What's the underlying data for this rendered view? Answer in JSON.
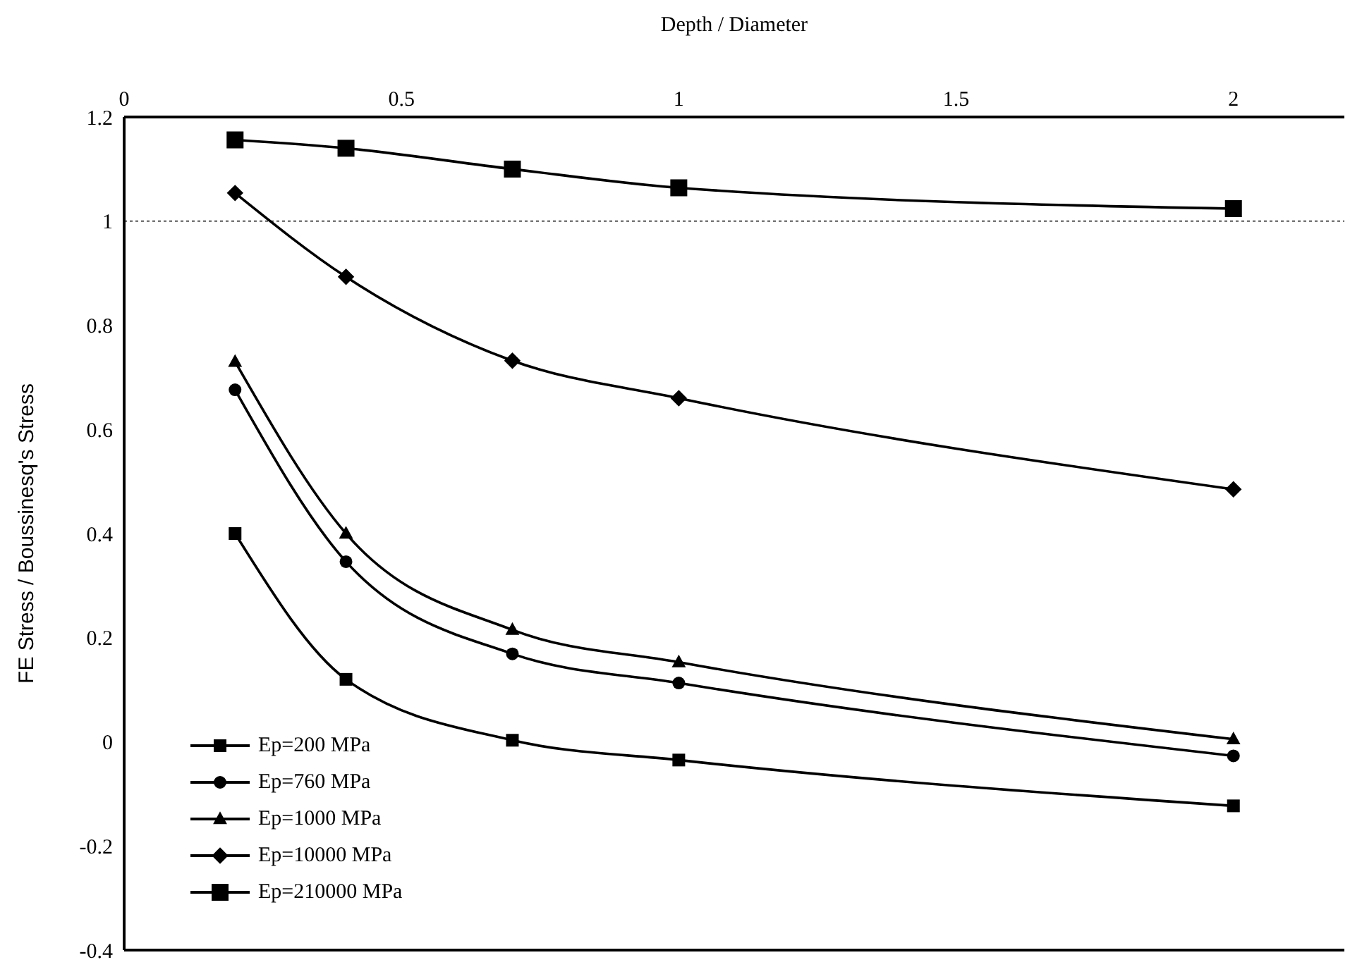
{
  "chart_data": {
    "type": "line",
    "xlabel": "Depth / Diameter",
    "ylabel": "FE Stress / Boussinesq's  Stress",
    "xlim": [
      0,
      2.2
    ],
    "xticks": [
      0,
      0.5,
      1,
      1.5,
      2
    ],
    "ylim": [
      -0.4,
      1.2
    ],
    "yticks": [
      -0.4,
      -0.2,
      0,
      0.2,
      0.4,
      0.6,
      0.8,
      1,
      1.2
    ],
    "x": [
      0.2,
      0.4,
      0.7,
      1,
      2
    ],
    "grid": false,
    "legend": "bottom left",
    "ref_lines": [
      {
        "axis": "y",
        "value": 1,
        "line_style": "dotted",
        "color": "#555555"
      }
    ],
    "series": [
      {
        "name": "Ep=200 MPa",
        "color": "#000000",
        "marker": "square",
        "values": [
          0.4,
          0.12,
          0.003,
          -0.035,
          -0.123
        ]
      },
      {
        "name": "Ep=760 MPa",
        "color": "#000000",
        "marker": "circle",
        "values": [
          0.676,
          0.346,
          0.169,
          0.113,
          -0.027
        ]
      },
      {
        "name": "Ep=1000 MPa",
        "color": "#000000",
        "marker": "triangle",
        "values": [
          0.73,
          0.4,
          0.215,
          0.153,
          0.005
        ]
      },
      {
        "name": "Ep=10000 MPa",
        "color": "#000000",
        "marker": "diamond",
        "values": [
          1.054,
          0.893,
          0.732,
          0.66,
          0.485
        ]
      },
      {
        "name": "Ep=210000 MPa",
        "color": "#000000",
        "marker": "square",
        "values": [
          1.156,
          1.14,
          1.1,
          1.064,
          1.024
        ]
      }
    ]
  }
}
